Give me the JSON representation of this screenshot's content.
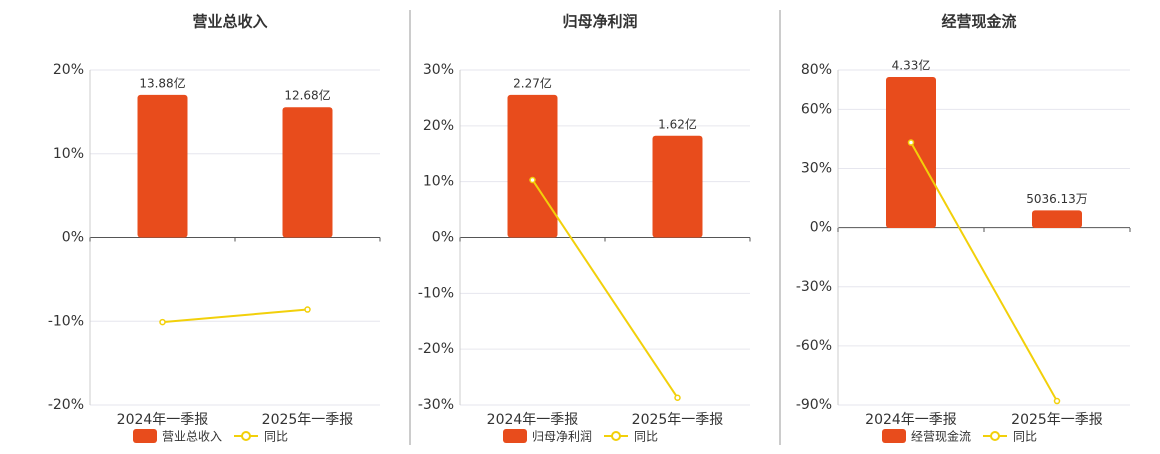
{
  "chart_data": [
    {
      "type": "bar",
      "title": "营业总收入",
      "categories": [
        "2024年一季报",
        "2025年一季报"
      ],
      "series": [
        {
          "name": "营业总收入",
          "color": "#e84c1c",
          "axis": "y2",
          "values": [
            1388000000,
            1268000000
          ],
          "value_labels": [
            "13.88亿",
            "12.68亿"
          ]
        },
        {
          "name": "同比",
          "type": "line",
          "color": "#f2d00a",
          "values": [
            -10.1,
            -8.6
          ]
        }
      ],
      "ylim": [
        -20,
        20
      ],
      "yticks": [
        {
          "value": 20,
          "label": "20%"
        },
        {
          "value": 10,
          "label": "10%"
        },
        {
          "value": 0,
          "label": "0%"
        },
        {
          "value": -10,
          "label": "-10%"
        },
        {
          "value": -20,
          "label": "-20%"
        }
      ],
      "y2lim": [
        -1630000000,
        1630000000
      ],
      "grid": true
    },
    {
      "type": "bar",
      "title": "归母净利润",
      "categories": [
        "2024年一季报",
        "2025年一季报"
      ],
      "series": [
        {
          "name": "归母净利润",
          "color": "#e84c1c",
          "axis": "y2",
          "values": [
            227000000,
            162000000
          ],
          "value_labels": [
            "2.27亿",
            "1.62亿"
          ]
        },
        {
          "name": "同比",
          "type": "line",
          "color": "#f2d00a",
          "values": [
            10.3,
            -28.7
          ]
        }
      ],
      "ylim": [
        -30,
        30
      ],
      "yticks": [
        {
          "value": 30,
          "label": "30%"
        },
        {
          "value": 20,
          "label": "20%"
        },
        {
          "value": 10,
          "label": "10%"
        },
        {
          "value": 0,
          "label": "0%"
        },
        {
          "value": -10,
          "label": "-10%"
        },
        {
          "value": -20,
          "label": "-20%"
        },
        {
          "value": -30,
          "label": "-30%"
        }
      ],
      "y2lim": [
        -266700000,
        266700000
      ],
      "grid": true
    },
    {
      "type": "bar",
      "title": "经营现金流",
      "categories": [
        "2024年一季报",
        "2025年一季报"
      ],
      "series": [
        {
          "name": "经营现金流",
          "color": "#e84c1c",
          "axis": "y2",
          "values": [
            433000000,
            50361300
          ],
          "value_labels": [
            "4.33亿",
            "5036.13万"
          ]
        },
        {
          "name": "同比",
          "type": "line",
          "color": "#f2d00a",
          "values": [
            43.2,
            -88
          ]
        }
      ],
      "ylim": [
        -90,
        80
      ],
      "yticks": [
        {
          "value": 80,
          "label": "80%"
        },
        {
          "value": 60,
          "label": "60%"
        },
        {
          "value": 30,
          "label": "30%"
        },
        {
          "value": 0,
          "label": "0%"
        },
        {
          "value": -30,
          "label": "-30%"
        },
        {
          "value": -60,
          "label": "-60%"
        },
        {
          "value": -90,
          "label": "-90%"
        }
      ],
      "y2lim": [
        -507500000,
        453000000
      ],
      "grid": true
    }
  ]
}
